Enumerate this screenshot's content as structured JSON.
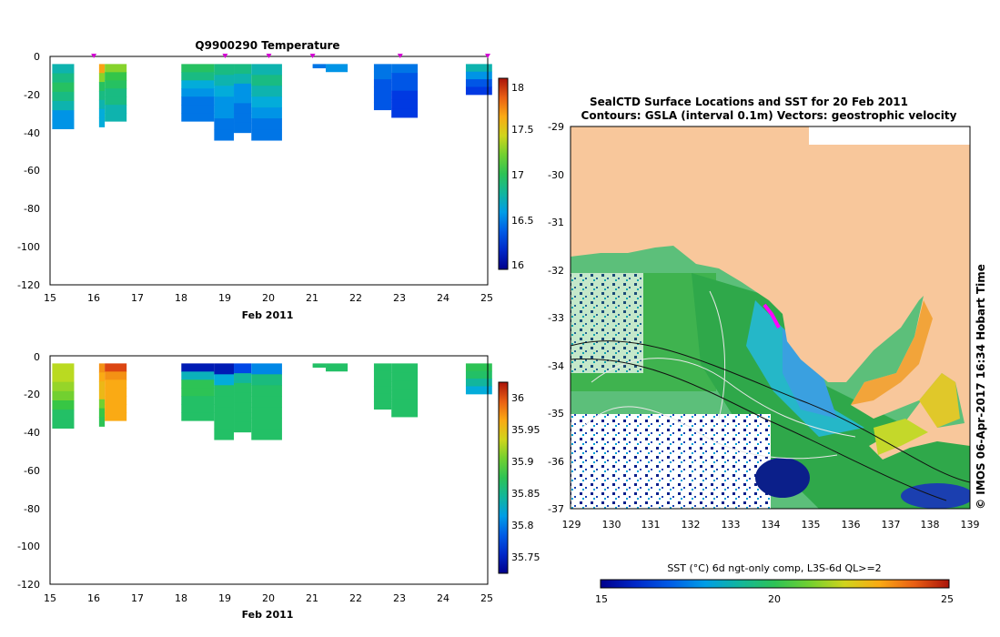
{
  "figure": {
    "credit": "© IMOS 06-Apr-2017 16:34 Hobart Time"
  },
  "chart_data": [
    {
      "type": "heatmap",
      "title": "Q9900290  Temperature",
      "xlabel": "Feb 2011",
      "ylabel": "",
      "xlim": [
        15,
        25
      ],
      "ylim": [
        -120,
        0
      ],
      "x_ticks": [
        "15",
        "16",
        "17",
        "18",
        "19",
        "20",
        "21",
        "22",
        "23",
        "24",
        "25"
      ],
      "y_ticks": [
        "0",
        "-20",
        "-40",
        "-60",
        "-80",
        "-100",
        "-120"
      ],
      "colorbar": {
        "min": 16,
        "max": 18.1,
        "ticks": [
          "16",
          "16.5",
          "17",
          "17.5",
          "18"
        ]
      },
      "profile_markers": [
        16,
        19,
        20,
        21,
        23,
        25
      ],
      "casts": [
        {
          "x0": 15.05,
          "x1": 15.55,
          "depth": 38,
          "v": [
            16.8,
            16.9,
            17.0,
            16.9,
            16.8,
            16.6,
            16.6
          ]
        },
        {
          "x0": 16.12,
          "x1": 16.25,
          "depth": 37,
          "v": [
            17.7,
            17.3,
            17.0,
            16.9,
            16.8,
            16.7,
            16.7
          ]
        },
        {
          "x0": 16.25,
          "x1": 16.75,
          "depth": 34,
          "v": [
            17.3,
            17.1,
            17.0,
            16.9,
            16.9,
            16.8,
            16.8
          ]
        },
        {
          "x0": 18.0,
          "x1": 18.75,
          "depth": 34,
          "v": [
            17.0,
            16.9,
            16.7,
            16.6,
            16.5,
            16.5,
            16.5
          ]
        },
        {
          "x0": 18.75,
          "x1": 19.2,
          "depth": 44,
          "v": [
            16.9,
            16.8,
            16.7,
            16.6,
            16.6,
            16.5,
            16.5
          ]
        },
        {
          "x0": 19.2,
          "x1": 19.6,
          "depth": 40,
          "v": [
            16.9,
            16.8,
            16.6,
            16.6,
            16.5,
            16.5,
            16.5
          ]
        },
        {
          "x0": 19.6,
          "x1": 20.3,
          "depth": 44,
          "v": [
            16.8,
            16.9,
            16.8,
            16.7,
            16.6,
            16.5,
            16.5
          ]
        },
        {
          "x0": 21.0,
          "x1": 21.3,
          "depth": 6,
          "v": [
            16.5,
            16.5
          ]
        },
        {
          "x0": 21.3,
          "x1": 21.8,
          "depth": 8,
          "v": [
            16.6,
            16.6
          ]
        },
        {
          "x0": 22.4,
          "x1": 22.8,
          "depth": 28,
          "v": [
            16.5,
            16.5,
            16.4,
            16.4,
            16.4,
            16.4
          ]
        },
        {
          "x0": 22.8,
          "x1": 23.4,
          "depth": 32,
          "v": [
            16.5,
            16.4,
            16.4,
            16.3,
            16.3,
            16.3
          ]
        },
        {
          "x0": 24.5,
          "x1": 25.1,
          "depth": 20,
          "v": [
            16.8,
            16.6,
            16.4,
            16.3
          ]
        }
      ]
    },
    {
      "type": "heatmap",
      "title": "",
      "xlabel": "Feb 2011",
      "ylabel": "",
      "xlim": [
        15,
        25
      ],
      "ylim": [
        -120,
        0
      ],
      "x_ticks": [
        "15",
        "16",
        "17",
        "18",
        "19",
        "20",
        "21",
        "22",
        "23",
        "24",
        "25"
      ],
      "y_ticks": [
        "0",
        "-20",
        "-40",
        "-60",
        "-80",
        "-100",
        "-120"
      ],
      "colorbar": {
        "min": 35.72,
        "max": 36.02,
        "ticks": [
          "35.75",
          "35.8",
          "35.85",
          "35.9",
          "35.95",
          "36"
        ]
      },
      "casts": [
        {
          "x0": 15.05,
          "x1": 15.55,
          "depth": 38,
          "v": [
            35.92,
            35.92,
            35.91,
            35.9,
            35.88,
            35.86,
            35.86
          ]
        },
        {
          "x0": 16.12,
          "x1": 16.25,
          "depth": 37,
          "v": [
            35.97,
            35.96,
            35.95,
            35.95,
            35.9,
            35.88,
            35.87
          ]
        },
        {
          "x0": 16.25,
          "x1": 16.75,
          "depth": 34,
          "v": [
            36.0,
            35.97,
            35.96,
            35.96,
            35.96,
            35.96,
            35.96
          ]
        },
        {
          "x0": 18.0,
          "x1": 18.75,
          "depth": 34,
          "v": [
            35.74,
            35.83,
            35.87,
            35.87,
            35.86,
            35.86,
            35.86
          ]
        },
        {
          "x0": 18.75,
          "x1": 19.2,
          "depth": 44,
          "v": [
            35.74,
            35.82,
            35.86,
            35.86,
            35.86,
            35.86,
            35.86
          ]
        },
        {
          "x0": 19.2,
          "x1": 19.6,
          "depth": 40,
          "v": [
            35.77,
            35.84,
            35.86,
            35.86,
            35.86,
            35.86,
            35.86
          ]
        },
        {
          "x0": 19.6,
          "x1": 20.3,
          "depth": 44,
          "v": [
            35.8,
            35.85,
            35.86,
            35.86,
            35.86,
            35.86,
            35.86
          ]
        },
        {
          "x0": 21.0,
          "x1": 21.3,
          "depth": 6,
          "v": [
            35.86,
            35.86
          ]
        },
        {
          "x0": 21.3,
          "x1": 21.8,
          "depth": 8,
          "v": [
            35.86,
            35.86
          ]
        },
        {
          "x0": 22.4,
          "x1": 22.8,
          "depth": 28,
          "v": [
            35.86,
            35.86,
            35.86,
            35.86,
            35.86,
            35.86
          ]
        },
        {
          "x0": 22.8,
          "x1": 23.4,
          "depth": 32,
          "v": [
            35.86,
            35.86,
            35.86,
            35.86,
            35.86,
            35.86
          ]
        },
        {
          "x0": 24.5,
          "x1": 25.1,
          "depth": 20,
          "v": [
            35.87,
            35.86,
            35.84,
            35.82
          ]
        }
      ]
    },
    {
      "type": "heatmap",
      "title": "SealCTD Surface Locations and SST for 20 Feb 2011",
      "subtitle": "Contours: GSLA (interval 0.1m) Vectors: geostrophic velocity",
      "xlabel": "",
      "ylabel": "",
      "xlim": [
        129,
        139
      ],
      "ylim": [
        -37,
        -29
      ],
      "x_ticks": [
        "129",
        "130",
        "131",
        "132",
        "133",
        "134",
        "135",
        "136",
        "137",
        "138",
        "139"
      ],
      "y_ticks": [
        "-29",
        "-30",
        "-31",
        "-32",
        "-33",
        "-34",
        "-35",
        "-36",
        "-37"
      ],
      "colorbar": {
        "label": "SST (°C) 6d ngt-only comp, L3S-6d QL>=2",
        "min": 15,
        "max": 25,
        "ticks": [
          "15",
          "20",
          "25"
        ]
      },
      "seal_locations": [
        {
          "lon": 134.2,
          "lat": -32.9
        }
      ]
    }
  ]
}
